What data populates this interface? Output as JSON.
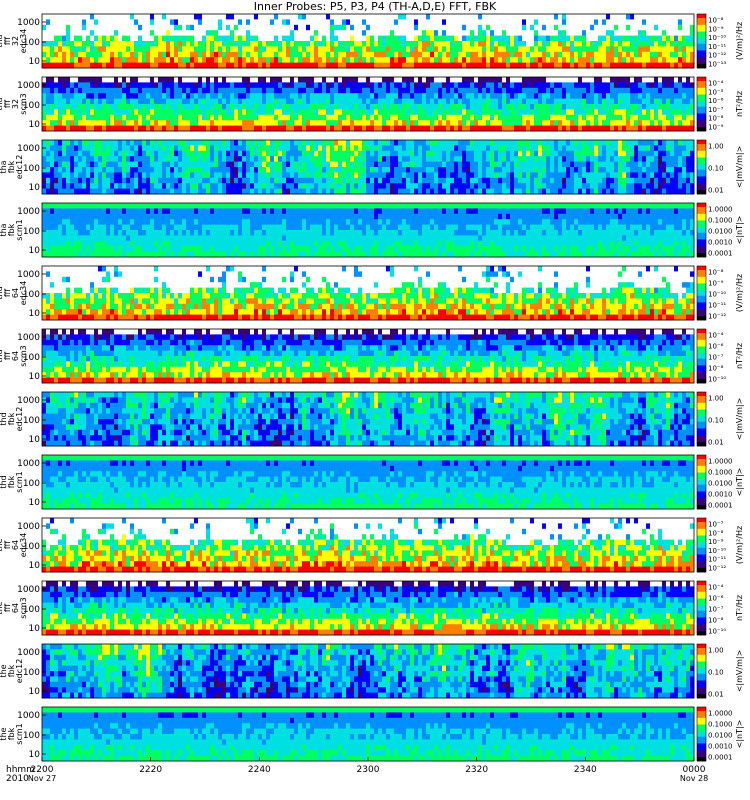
{
  "title": "Inner Probes: P5, P3, P4 (TH-A,D,E) FFT, FBK",
  "time_axis": {
    "row_label": "hhmm",
    "year": "2010",
    "ticks": [
      "2200",
      "2220",
      "2240",
      "2300",
      "2320",
      "2340",
      "0000"
    ],
    "start_date": "Nov 27",
    "end_date": "Nov 28"
  },
  "colors": {
    "background": "#ffffff",
    "axes": "#000000",
    "colormap": [
      "#000000",
      "#3a0078",
      "#0000ff",
      "#0090ff",
      "#00e0e0",
      "#00ff60",
      "#ffff00",
      "#ff8000",
      "#ff0000"
    ]
  },
  "chart_data": [
    {
      "type": "heatmap",
      "label": [
        "tha",
        "fff",
        "32",
        "edc34"
      ],
      "y_ticks": [
        "1000",
        "100",
        "10"
      ],
      "cbar_unit": "(V/m)²/Hz",
      "cbar_ticks": [
        "10⁻⁸",
        "10⁻⁹",
        "10⁻¹⁰",
        "10⁻¹¹",
        "10⁻¹²",
        "10⁻¹³"
      ],
      "style": "fff-e",
      "seed": 11
    },
    {
      "type": "heatmap",
      "label": [
        "tha",
        "fff",
        "32",
        "scm3"
      ],
      "y_ticks": [
        "1000",
        "100",
        "10"
      ],
      "cbar_unit": "nT²/Hz",
      "cbar_ticks": [
        "10⁻⁴",
        "10⁻⁵",
        "10⁻⁶",
        "10⁻⁷",
        "10⁻⁸",
        "10⁻⁹"
      ],
      "style": "fff-b",
      "seed": 12
    },
    {
      "type": "heatmap",
      "label": [
        "tha",
        "fbk",
        "edc12"
      ],
      "y_ticks": [
        "1000",
        "100",
        "10"
      ],
      "cbar_unit": "<|mV/m|>",
      "cbar_ticks": [
        "1.00",
        "0.10",
        "0.01"
      ],
      "style": "fbk-e",
      "seed": 13
    },
    {
      "type": "heatmap",
      "label": [
        "tha",
        "fbk",
        "scm1"
      ],
      "y_ticks": [
        "1000",
        "100",
        "10"
      ],
      "cbar_unit": "<|nT|>",
      "cbar_ticks": [
        "1.0000",
        "0.1000",
        "0.0100",
        "0.0010",
        "0.0001"
      ],
      "style": "fbk-b",
      "seed": 14
    },
    {
      "type": "heatmap",
      "label": [
        "thd",
        "fff",
        "64",
        "edc34"
      ],
      "y_ticks": [
        "1000",
        "100",
        "10"
      ],
      "cbar_unit": "(V/m)²/Hz",
      "cbar_ticks": [
        "10⁻⁸",
        "10⁻⁹",
        "10⁻¹⁰",
        "10⁻¹¹",
        "10⁻¹²"
      ],
      "style": "fff-e",
      "seed": 21
    },
    {
      "type": "heatmap",
      "label": [
        "thd",
        "fff",
        "64",
        "scm3"
      ],
      "y_ticks": [
        "1000",
        "100",
        "10"
      ],
      "cbar_unit": "nT²/Hz",
      "cbar_ticks": [
        "10⁻⁴",
        "10⁻⁶",
        "10⁻⁷",
        "10⁻⁸",
        "10⁻¹⁰"
      ],
      "style": "fff-b",
      "seed": 22
    },
    {
      "type": "heatmap",
      "label": [
        "thd",
        "fbk",
        "edc12"
      ],
      "y_ticks": [
        "1000",
        "100",
        "10"
      ],
      "cbar_unit": "<|mV/m|>",
      "cbar_ticks": [
        "1.00",
        "0.10",
        "0.01"
      ],
      "style": "fbk-e",
      "seed": 23
    },
    {
      "type": "heatmap",
      "label": [
        "thd",
        "fbk",
        "scm1"
      ],
      "y_ticks": [
        "1000",
        "100",
        "10"
      ],
      "cbar_unit": "<|nT|>",
      "cbar_ticks": [
        "1.0000",
        "0.1000",
        "0.0100",
        "0.0010",
        "0.0001"
      ],
      "style": "fbk-b",
      "seed": 24
    },
    {
      "type": "heatmap",
      "label": [
        "the",
        "fff",
        "64",
        "edc34"
      ],
      "y_ticks": [
        "1000",
        "100",
        "10"
      ],
      "cbar_unit": "(V/m)²/Hz",
      "cbar_ticks": [
        "10⁻⁷",
        "10⁻⁸",
        "10⁻⁹",
        "10⁻¹⁰",
        "10⁻¹¹",
        "10⁻¹²"
      ],
      "style": "fff-e",
      "seed": 31
    },
    {
      "type": "heatmap",
      "label": [
        "the",
        "fff",
        "64",
        "scm3"
      ],
      "y_ticks": [
        "1000",
        "100",
        "10"
      ],
      "cbar_unit": "nT²/Hz",
      "cbar_ticks": [
        "10⁻⁴",
        "10⁻⁶",
        "10⁻⁷",
        "10⁻⁸",
        "10⁻¹⁰"
      ],
      "style": "fff-b",
      "seed": 32
    },
    {
      "type": "heatmap",
      "label": [
        "the",
        "fbk",
        "edc12"
      ],
      "y_ticks": [
        "1000",
        "100",
        "10"
      ],
      "cbar_unit": "<|mV/m|>",
      "cbar_ticks": [
        "1.00",
        "0.10",
        "0.01"
      ],
      "style": "fbk-e",
      "seed": 33
    },
    {
      "type": "heatmap",
      "label": [
        "the",
        "fbk",
        "scm1"
      ],
      "y_ticks": [
        "1000",
        "100",
        "10"
      ],
      "cbar_unit": "<|nT|>",
      "cbar_ticks": [
        "1.0000",
        "0.1000",
        "0.0100",
        "0.0010",
        "0.0001"
      ],
      "style": "fbk-b",
      "seed": 34
    }
  ]
}
